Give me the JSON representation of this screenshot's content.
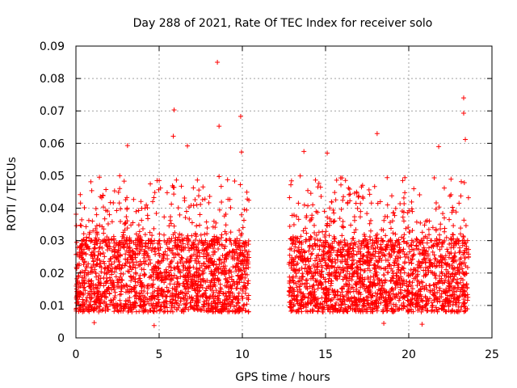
{
  "chart_data": {
    "type": "scatter",
    "title": "Day 288 of 2021, Rate Of TEC Index for receiver solo",
    "xlabel": "GPS time / hours",
    "ylabel": "ROTI / TECUs",
    "xlim": [
      0,
      25
    ],
    "ylim": [
      0,
      0.09
    ],
    "x_ticks": [
      0,
      5,
      10,
      15,
      20,
      25
    ],
    "x_tick_labels": [
      "0",
      "5",
      "10",
      "15",
      "20",
      "25"
    ],
    "y_ticks": [
      0,
      0.01,
      0.02,
      0.03,
      0.04,
      0.05,
      0.06,
      0.07,
      0.08,
      0.09
    ],
    "y_tick_labels": [
      "0",
      "0.01",
      "0.02",
      "0.03",
      "0.04",
      "0.05",
      "0.06",
      "0.07",
      "0.08",
      "0.09"
    ],
    "grid": true,
    "marker": "+",
    "color": "#ff0000",
    "series": [
      {
        "name": "",
        "segments": [
          {
            "x_start": 0.0,
            "x_end": 10.4,
            "y_typical": [
              0.008,
              0.03
            ],
            "y_extremes": [
              0.004,
              0.085
            ]
          },
          {
            "x_start": 12.8,
            "x_end": 23.6,
            "y_typical": [
              0.008,
              0.03
            ],
            "y_extremes": [
              0.004,
              0.074
            ]
          }
        ],
        "notable_points": [
          {
            "x": 8.5,
            "y": 0.085
          },
          {
            "x": 23.3,
            "y": 0.074
          },
          {
            "x": 5.9,
            "y": 0.0703
          },
          {
            "x": 23.3,
            "y": 0.0693
          },
          {
            "x": 9.9,
            "y": 0.0683
          },
          {
            "x": 8.6,
            "y": 0.0653
          },
          {
            "x": 18.1,
            "y": 0.063
          },
          {
            "x": 5.85,
            "y": 0.0622
          },
          {
            "x": 23.4,
            "y": 0.0612
          },
          {
            "x": 3.1,
            "y": 0.0593
          },
          {
            "x": 6.7,
            "y": 0.0592
          },
          {
            "x": 21.8,
            "y": 0.059
          },
          {
            "x": 13.7,
            "y": 0.0575
          },
          {
            "x": 15.1,
            "y": 0.057
          },
          {
            "x": 9.95,
            "y": 0.0573
          },
          {
            "x": 1.1,
            "y": 0.0047
          },
          {
            "x": 4.7,
            "y": 0.0038
          },
          {
            "x": 20.8,
            "y": 0.0042
          },
          {
            "x": 18.5,
            "y": 0.0045
          }
        ]
      }
    ]
  }
}
